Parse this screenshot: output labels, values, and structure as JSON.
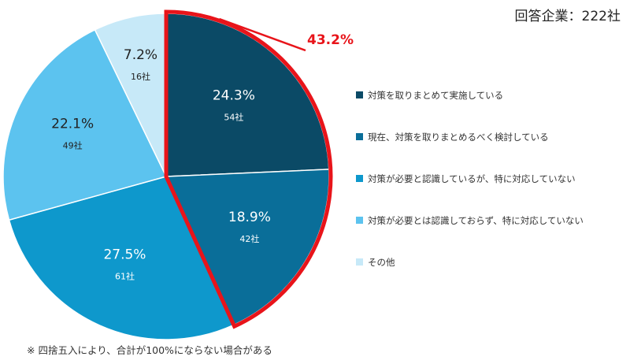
{
  "header": {
    "respondents": "回答企業：222社"
  },
  "footnote": "※ 四捨五入により、合計が100%にならない場合がある",
  "colors": [
    "#0b4a66",
    "#0a6e99",
    "#0e98cc",
    "#5cc3ef",
    "#c7e9f8"
  ],
  "highlight_color": "#e8141a",
  "chart_data": {
    "type": "pie",
    "title": "",
    "total_label": "回答企業：222社",
    "slices": [
      {
        "label": "対策を取りまとめて実施している",
        "percent": 24.3,
        "percent_text": "24.3%",
        "count": 54,
        "count_text": "54社",
        "color": "#0b4a66"
      },
      {
        "label": "現在、対策を取りまとめるべく検討している",
        "percent": 18.9,
        "percent_text": "18.9%",
        "count": 42,
        "count_text": "42社",
        "color": "#0a6e99"
      },
      {
        "label": "対策が必要と認識しているが、特に対応していない",
        "percent": 27.5,
        "percent_text": "27.5%",
        "count": 61,
        "count_text": "61社",
        "color": "#0e98cc"
      },
      {
        "label": "対策が必要とは認識しておらず、特に対応していない",
        "percent": 22.1,
        "percent_text": "22.1%",
        "count": 49,
        "count_text": "49社",
        "color": "#5cc3ef"
      },
      {
        "label": "その他",
        "percent": 7.2,
        "percent_text": "7.2%",
        "count": 16,
        "count_text": "16社",
        "color": "#c7e9f8"
      }
    ],
    "highlight": {
      "slices": [
        0,
        1
      ],
      "value_text": "43.2%"
    },
    "legend_position": "right",
    "start_angle": "12 o'clock",
    "direction": "clockwise"
  }
}
